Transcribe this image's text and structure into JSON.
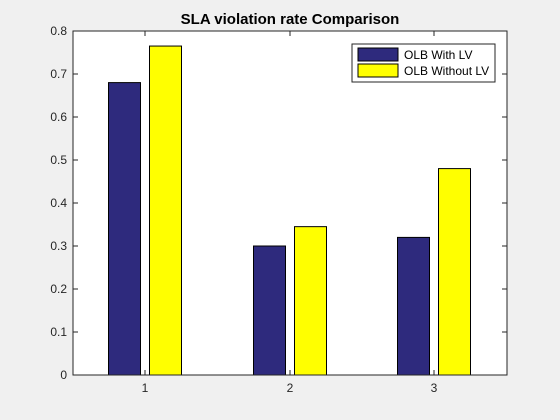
{
  "chart_data": {
    "type": "bar",
    "title": "SLA violation rate Comparison",
    "xlabel": "",
    "ylabel": "",
    "categories": [
      "1",
      "2",
      "3"
    ],
    "series": [
      {
        "name": "OLB With LV",
        "values": [
          0.68,
          0.3,
          0.32
        ],
        "color": "#2e2a7d"
      },
      {
        "name": "OLB Without LV",
        "values": [
          0.765,
          0.345,
          0.48
        ],
        "color": "#ffff00"
      }
    ],
    "ylim": [
      0,
      0.8
    ],
    "yticks": [
      "0",
      "0.1",
      "0.2",
      "0.3",
      "0.4",
      "0.5",
      "0.6",
      "0.7",
      "0.8"
    ],
    "grid": false,
    "legend_position": "top-right"
  }
}
